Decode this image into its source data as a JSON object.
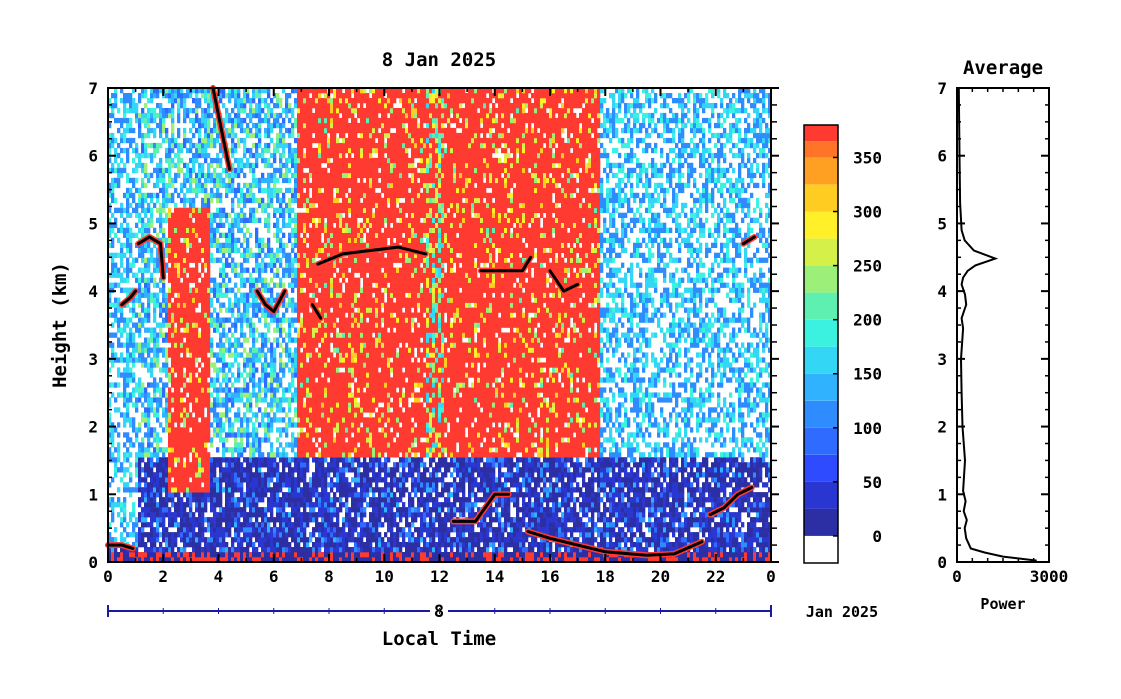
{
  "chart_data": [
    {
      "type": "heatmap",
      "title": "8 Jan 2025",
      "xlabel": "Local Time",
      "ylabel": "Height (km)",
      "xlim": [
        0,
        24
      ],
      "ylim": [
        0,
        7
      ],
      "x_ticks": [
        "0",
        "2",
        "4",
        "6",
        "8",
        "10",
        "12",
        "14",
        "16",
        "18",
        "20",
        "22",
        "0"
      ],
      "y_ticks": [
        "0",
        "1",
        "2",
        "3",
        "4",
        "5",
        "6",
        "7"
      ],
      "date_bar": {
        "day": "8",
        "month_year": "Jan 2025"
      },
      "colorbar": {
        "ticks": [
          "0",
          "50",
          "100",
          "150",
          "200",
          "250",
          "300",
          "350"
        ],
        "range": [
          -25,
          380
        ],
        "levels": [
          {
            "value": -25,
            "color": "#ffffff"
          },
          {
            "value": 0,
            "color": "#2b2fa3"
          },
          {
            "value": 25,
            "color": "#2a36d0"
          },
          {
            "value": 50,
            "color": "#2e4bff"
          },
          {
            "value": 75,
            "color": "#2f6bff"
          },
          {
            "value": 100,
            "color": "#2f8cff"
          },
          {
            "value": 125,
            "color": "#30b2ff"
          },
          {
            "value": 150,
            "color": "#33d7f5"
          },
          {
            "value": 175,
            "color": "#3bf2e0"
          },
          {
            "value": 200,
            "color": "#5df0b0"
          },
          {
            "value": 225,
            "color": "#9cf07a"
          },
          {
            "value": 250,
            "color": "#d6f04a"
          },
          {
            "value": 275,
            "color": "#fff02a"
          },
          {
            "value": 300,
            "color": "#ffcc22"
          },
          {
            "value": 325,
            "color": "#ffa022"
          },
          {
            "value": 350,
            "color": "#ff7426"
          },
          {
            "value": 365,
            "color": "#ff3a30"
          }
        ]
      },
      "regions": [
        {
          "t0": 0,
          "t1": 1.0,
          "h0": 0.2,
          "h1": 7,
          "level": "sparse-blue"
        },
        {
          "t0": 2.1,
          "t1": 3.6,
          "h0": 1.0,
          "h1": 5.2,
          "level": "high"
        },
        {
          "t0": 6.8,
          "t1": 11.5,
          "h0": 1.5,
          "h1": 7,
          "level": "high"
        },
        {
          "t0": 11.5,
          "t1": 12.1,
          "h0": 1.5,
          "h1": 7,
          "level": "mid"
        },
        {
          "t0": 12.1,
          "t1": 17.8,
          "h0": 1.5,
          "h1": 7,
          "level": "high"
        },
        {
          "t0": 17.8,
          "t1": 24,
          "h0": 1.5,
          "h1": 7,
          "level": "sparse-blue"
        },
        {
          "t0": 0,
          "t1": 24,
          "h0": 0,
          "h1": 1.5,
          "level": "low"
        }
      ],
      "cloud_layers": [
        {
          "t": [
            0.0,
            0.5,
            0.9
          ],
          "h": [
            0.25,
            0.25,
            0.2
          ]
        },
        {
          "t": [
            1.1,
            1.5,
            1.9,
            2.0
          ],
          "h": [
            4.7,
            4.8,
            4.7,
            4.2
          ]
        },
        {
          "t": [
            0.5,
            0.8,
            1.0
          ],
          "h": [
            3.8,
            3.9,
            4.0
          ]
        },
        {
          "t": [
            3.8,
            4.0,
            4.2,
            4.4
          ],
          "h": [
            7.0,
            6.6,
            6.2,
            5.8
          ]
        },
        {
          "t": [
            5.4,
            5.7,
            6.0,
            6.4
          ],
          "h": [
            4.0,
            3.8,
            3.7,
            4.0
          ]
        },
        {
          "t": [
            7.4,
            7.7
          ],
          "h": [
            3.8,
            3.6
          ]
        },
        {
          "t": [
            7.6,
            8.5,
            9.5,
            10.5,
            11.5
          ],
          "h": [
            4.4,
            4.55,
            4.6,
            4.65,
            4.55
          ]
        },
        {
          "t": [
            13.5,
            14.5,
            15.0,
            15.3
          ],
          "h": [
            4.3,
            4.3,
            4.3,
            4.5
          ]
        },
        {
          "t": [
            16.0,
            16.5,
            17.0
          ],
          "h": [
            4.3,
            4.0,
            4.1
          ]
        },
        {
          "t": [
            12.5,
            13.3,
            14.0,
            14.5
          ],
          "h": [
            0.6,
            0.6,
            1.0,
            1.0
          ]
        },
        {
          "t": [
            15.2,
            16.0,
            17.0,
            18.0,
            19.5,
            20.5,
            21.5
          ],
          "h": [
            0.45,
            0.35,
            0.25,
            0.15,
            0.1,
            0.12,
            0.3
          ]
        },
        {
          "t": [
            21.8,
            22.3,
            22.8,
            23.3
          ],
          "h": [
            0.7,
            0.8,
            1.0,
            1.1
          ]
        },
        {
          "t": [
            23.0,
            23.4
          ],
          "h": [
            4.7,
            4.8
          ]
        }
      ]
    },
    {
      "type": "line",
      "title": "Average",
      "xlabel": "Power",
      "ylabel": "",
      "xlim": [
        0,
        3000
      ],
      "ylim": [
        0,
        7
      ],
      "x_ticks": [
        "0",
        "3000"
      ],
      "y_ticks": [
        "0",
        "1",
        "2",
        "3",
        "4",
        "5",
        "6",
        "7"
      ],
      "x": [
        2600,
        1500,
        900,
        450,
        300,
        250,
        320,
        220,
        280,
        200,
        260,
        180,
        150,
        130,
        200,
        150,
        300,
        260,
        150,
        200,
        350,
        600,
        1250,
        550,
        250,
        150,
        100,
        80,
        60
      ],
      "y": [
        0.02,
        0.08,
        0.14,
        0.2,
        0.35,
        0.5,
        0.62,
        0.75,
        0.9,
        1.05,
        1.5,
        2.0,
        2.5,
        3.0,
        3.45,
        3.6,
        3.8,
        3.95,
        4.1,
        4.2,
        4.3,
        4.38,
        4.48,
        4.6,
        4.75,
        4.9,
        5.3,
        6.0,
        7.0
      ]
    }
  ]
}
